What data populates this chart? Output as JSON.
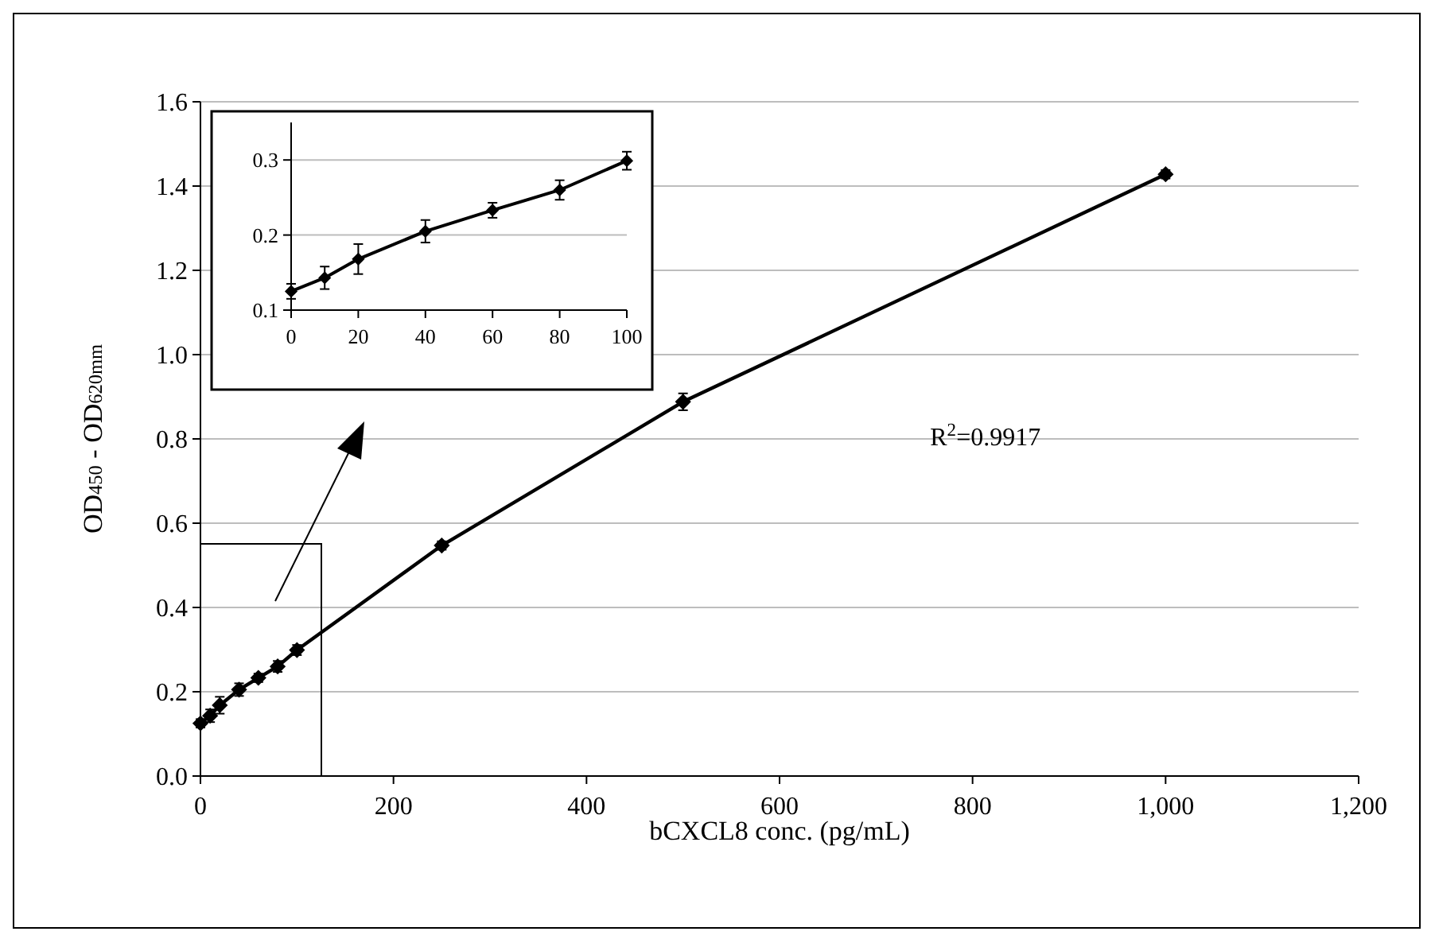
{
  "chart_data": [
    {
      "type": "line",
      "xlabel": "bCXCL8 conc. (pg/mL)",
      "ylabel": "OD$_{450}$ - OD$_{620mm}$",
      "x": [
        0,
        10,
        20,
        40,
        60,
        80,
        100,
        250,
        500,
        1000
      ],
      "series": [
        {
          "color": "#000000",
          "values": [
            0.125,
            0.143,
            0.168,
            0.205,
            0.233,
            0.26,
            0.299,
            0.547,
            0.888,
            1.428
          ],
          "errors": [
            0.01,
            0.015,
            0.02,
            0.015,
            0.01,
            0.013,
            0.012,
            0.01,
            0.02,
            0.01
          ]
        }
      ],
      "xlim": [
        0,
        1200
      ],
      "xticks": [
        0,
        200,
        400,
        600,
        800,
        {
          "value": 1000,
          "label": "1,000"
        },
        {
          "value": 1200,
          "label": "1,200"
        }
      ],
      "ylim": [
        0,
        1.6
      ],
      "yticks": [
        {
          "value": 0,
          "label": "0.0"
        },
        0.2,
        0.4,
        0.6,
        0.8,
        {
          "value": 1,
          "label": "1.0"
        },
        1.2,
        1.4,
        1.6
      ],
      "grid": "y",
      "marker": "diamond",
      "line_style": "solid",
      "annotations": [
        "R$^{2}$=0.9917"
      ]
    },
    {
      "type": "line",
      "x": [
        0,
        10,
        20,
        40,
        60,
        80,
        100
      ],
      "series": [
        {
          "color": "#000000",
          "values": [
            0.125,
            0.143,
            0.168,
            0.205,
            0.233,
            0.26,
            0.299
          ],
          "errors": [
            0.01,
            0.015,
            0.02,
            0.015,
            0.01,
            0.013,
            0.012
          ]
        }
      ],
      "xlim": [
        0,
        100
      ],
      "xticks": [
        0,
        20,
        40,
        60,
        80,
        100
      ],
      "ylim": [
        0.1,
        0.35
      ],
      "yticks": [
        0.1,
        0.2,
        0.3
      ],
      "grid": "y",
      "marker": "diamond",
      "line_style": "solid"
    }
  ]
}
